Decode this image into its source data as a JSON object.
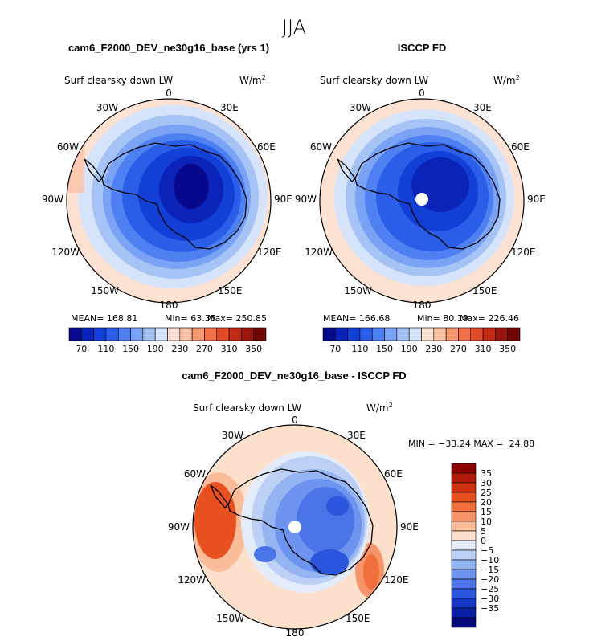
{
  "page": {
    "season": "JJA"
  },
  "panels": [
    {
      "title": "cam6_F2000_DEV_ne30g16_base (yrs 1)",
      "variable": "Surf clearsky down LW",
      "units": "W/m",
      "units_exp": "2",
      "stats": {
        "mean": "MEAN= 168.81",
        "min": "Min= 63.35",
        "max": "Max= 250.85"
      },
      "colorbar_labels": [
        "70",
        "110",
        "150",
        "190",
        "230",
        "270",
        "310",
        "350"
      ]
    },
    {
      "title": "ISCCP FD",
      "variable": "Surf clearsky down LW",
      "units": "W/m",
      "units_exp": "2",
      "stats": {
        "mean": "MEAN= 166.68",
        "min": "Min= 80.19",
        "max": "Max= 226.46"
      },
      "colorbar_labels": [
        "70",
        "110",
        "150",
        "190",
        "230",
        "270",
        "310",
        "350"
      ]
    },
    {
      "title": "cam6_F2000_DEV_ne30g16_base - ISCCP FD",
      "variable": "Surf clearsky down LW",
      "units": "W/m",
      "units_exp": "2",
      "minmax": "MIN = −33.24 MAX =  24.88",
      "colorbar_labels": [
        "35",
        "30",
        "25",
        "20",
        "15",
        "10",
        "5",
        "0",
        "−5",
        "−10",
        "−15",
        "−20",
        "−25",
        "−30",
        "−35"
      ]
    }
  ],
  "longitude_labels": {
    "lon_0": "0",
    "lon_30e": "30E",
    "lon_60e": "60E",
    "lon_90e": "90E",
    "lon_120e": "120E",
    "lon_150e": "150E",
    "lon_180": "180",
    "lon_150w": "150W",
    "lon_120w": "120W",
    "lon_90w": "90W",
    "lon_60w": "60W",
    "lon_30w": "30W"
  },
  "colors": {
    "abs_scale": [
      "#08088c",
      "#0b23b8",
      "#1240d6",
      "#2a5ee8",
      "#4f80f2",
      "#7aa2f5",
      "#a6c3f6",
      "#d5e4fa",
      "#fde2d3",
      "#fbc2a6",
      "#f79a74",
      "#f0704a",
      "#e04a28",
      "#c22a16",
      "#9a160c",
      "#700606"
    ],
    "diff_scale": [
      "#8b0000",
      "#b0190b",
      "#d0300f",
      "#e8501f",
      "#f06f3c",
      "#f6956a",
      "#fbbc99",
      "#fde0cc",
      "#e4ecfb",
      "#bcd0f6",
      "#95b4f2",
      "#6d94ee",
      "#4a74e8",
      "#2c55de",
      "#1637c6",
      "#0b1fa6",
      "#06097a"
    ]
  }
}
